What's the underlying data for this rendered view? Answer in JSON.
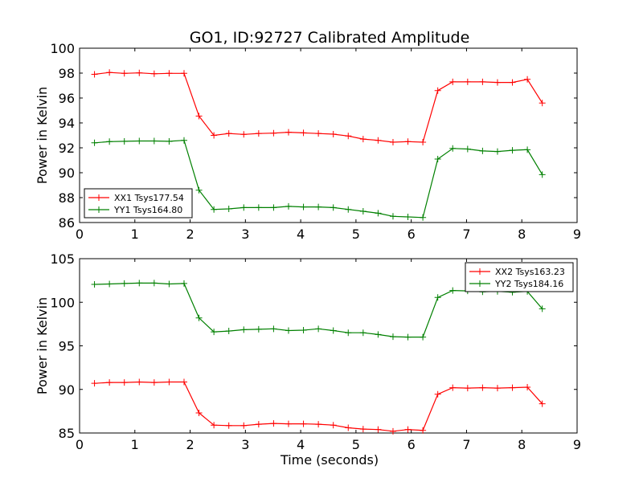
{
  "figure": {
    "title": "GO1, ID:92727 Calibrated Amplitude",
    "xlabel": "Time (seconds)"
  },
  "chart_data": [
    {
      "type": "line",
      "title": "GO1, ID:92727 Calibrated Amplitude",
      "xlabel": "",
      "ylabel": "Power in Kelvin",
      "xlim": [
        0,
        9
      ],
      "ylim": [
        86,
        100
      ],
      "xticks": [
        "0",
        "1",
        "2",
        "3",
        "4",
        "5",
        "6",
        "7",
        "8",
        "9"
      ],
      "yticks": [
        "86",
        "88",
        "90",
        "92",
        "94",
        "96",
        "98",
        "100"
      ],
      "legend_position": "lower-left",
      "grid": false,
      "x": [
        0.27,
        0.54,
        0.81,
        1.08,
        1.35,
        1.62,
        1.89,
        2.16,
        2.43,
        2.7,
        2.97,
        3.24,
        3.51,
        3.78,
        4.05,
        4.32,
        4.59,
        4.86,
        5.13,
        5.4,
        5.67,
        5.94,
        6.21,
        6.48,
        6.75,
        7.02,
        7.29,
        7.56,
        7.83,
        8.1,
        8.37
      ],
      "series": [
        {
          "name": "XX1 Tsys177.54",
          "color": "#ff0000",
          "values": [
            97.9,
            98.05,
            97.98,
            98.02,
            97.95,
            97.98,
            97.98,
            94.55,
            93.0,
            93.15,
            93.08,
            93.15,
            93.18,
            93.25,
            93.2,
            93.15,
            93.1,
            92.95,
            92.7,
            92.6,
            92.45,
            92.5,
            92.45,
            96.6,
            97.3,
            97.3,
            97.3,
            97.25,
            97.25,
            97.5,
            95.6
          ]
        },
        {
          "name": "YY1 Tsys164.80",
          "color": "#008000",
          "values": [
            92.4,
            92.5,
            92.52,
            92.55,
            92.55,
            92.52,
            92.6,
            88.6,
            87.05,
            87.1,
            87.2,
            87.2,
            87.2,
            87.3,
            87.25,
            87.25,
            87.2,
            87.05,
            86.9,
            86.75,
            86.5,
            86.45,
            86.4,
            91.1,
            91.95,
            91.9,
            91.75,
            91.7,
            91.8,
            91.85,
            89.85
          ]
        }
      ]
    },
    {
      "type": "line",
      "title": "",
      "xlabel": "Time (seconds)",
      "ylabel": "Power in Kelvin",
      "xlim": [
        0,
        9
      ],
      "ylim": [
        85,
        105
      ],
      "xticks": [
        "0",
        "1",
        "2",
        "3",
        "4",
        "5",
        "6",
        "7",
        "8",
        "9"
      ],
      "yticks": [
        "85",
        "90",
        "95",
        "100",
        "105"
      ],
      "legend_position": "upper-right",
      "grid": false,
      "x": [
        0.27,
        0.54,
        0.81,
        1.08,
        1.35,
        1.62,
        1.89,
        2.16,
        2.43,
        2.7,
        2.97,
        3.24,
        3.51,
        3.78,
        4.05,
        4.32,
        4.59,
        4.86,
        5.13,
        5.4,
        5.67,
        5.94,
        6.21,
        6.48,
        6.75,
        7.02,
        7.29,
        7.56,
        7.83,
        8.1,
        8.37
      ],
      "series": [
        {
          "name": "XX2 Tsys163.23",
          "color": "#ff0000",
          "values": [
            90.7,
            90.8,
            90.8,
            90.85,
            90.8,
            90.85,
            90.85,
            87.3,
            85.9,
            85.85,
            85.85,
            86.0,
            86.1,
            86.05,
            86.05,
            86.0,
            85.9,
            85.6,
            85.45,
            85.4,
            85.2,
            85.4,
            85.3,
            89.45,
            90.2,
            90.15,
            90.2,
            90.15,
            90.2,
            90.25,
            88.35
          ]
        },
        {
          "name": "YY2 Tsys184.16",
          "color": "#008000",
          "values": [
            102.05,
            102.1,
            102.15,
            102.2,
            102.2,
            102.1,
            102.15,
            98.2,
            96.6,
            96.7,
            96.85,
            96.9,
            96.95,
            96.75,
            96.8,
            96.95,
            96.75,
            96.5,
            96.5,
            96.3,
            96.05,
            96.0,
            96.0,
            100.55,
            101.35,
            101.3,
            101.2,
            101.25,
            101.15,
            101.25,
            99.25
          ]
        }
      ]
    }
  ]
}
